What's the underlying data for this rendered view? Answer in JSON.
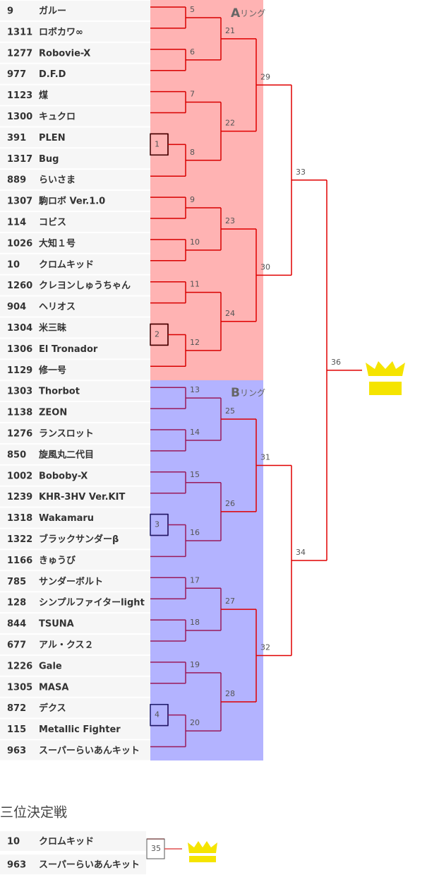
{
  "players": [
    {
      "id": "9",
      "name": "ガルー"
    },
    {
      "id": "1311",
      "name": "ロボカワ∞"
    },
    {
      "id": "1277",
      "name": "Robovie-X"
    },
    {
      "id": "977",
      "name": "D.F.D"
    },
    {
      "id": "1123",
      "name": "煤"
    },
    {
      "id": "1300",
      "name": "キュクロ"
    },
    {
      "id": "391",
      "name": "PLEN"
    },
    {
      "id": "1317",
      "name": "Bug"
    },
    {
      "id": "889",
      "name": "らいさま"
    },
    {
      "id": "1307",
      "name": "駒ロボ Ver.1.0"
    },
    {
      "id": "114",
      "name": "コビス"
    },
    {
      "id": "1026",
      "name": "大知１号"
    },
    {
      "id": "10",
      "name": "クロムキッド"
    },
    {
      "id": "1260",
      "name": "クレヨンしゅうちゃん"
    },
    {
      "id": "904",
      "name": "ヘリオス"
    },
    {
      "id": "1304",
      "name": "米三昧"
    },
    {
      "id": "1306",
      "name": "El Tronador"
    },
    {
      "id": "1129",
      "name": "修一号"
    },
    {
      "id": "1303",
      "name": "Thorbot"
    },
    {
      "id": "1138",
      "name": "ZEON"
    },
    {
      "id": "1276",
      "name": "ランスロット"
    },
    {
      "id": "850",
      "name": "旋風丸二代目"
    },
    {
      "id": "1002",
      "name": "Boboby-X"
    },
    {
      "id": "1239",
      "name": "KHR-3HV Ver.KIT"
    },
    {
      "id": "1318",
      "name": "Wakamaru"
    },
    {
      "id": "1322",
      "name": "ブラックサンダーβ"
    },
    {
      "id": "1166",
      "name": "きゅうび"
    },
    {
      "id": "785",
      "name": "サンダーボルト"
    },
    {
      "id": "128",
      "name": "シンプルファイターlight"
    },
    {
      "id": "844",
      "name": "TSUNA"
    },
    {
      "id": "677",
      "name": "アル・クス２"
    },
    {
      "id": "1226",
      "name": "Gale"
    },
    {
      "id": "1305",
      "name": "MASA"
    },
    {
      "id": "872",
      "name": "デクス"
    },
    {
      "id": "115",
      "name": "Metallic Fighter"
    },
    {
      "id": "963",
      "name": "スーパーらいあんキット"
    }
  ],
  "rings": [
    {
      "letter": "A",
      "suffix": "リング"
    },
    {
      "letter": "B",
      "suffix": "リング"
    }
  ],
  "matches": [
    "1",
    "2",
    "3",
    "4",
    "5",
    "6",
    "7",
    "8",
    "9",
    "10",
    "11",
    "12",
    "13",
    "14",
    "15",
    "16",
    "17",
    "18",
    "19",
    "20",
    "21",
    "22",
    "23",
    "24",
    "25",
    "26",
    "27",
    "28",
    "29",
    "30",
    "31",
    "32",
    "33",
    "34",
    "35",
    "36"
  ],
  "third_place": {
    "title": "三位決定戦",
    "players": [
      {
        "id": "10",
        "name": "クロムキッド"
      },
      {
        "id": "963",
        "name": "スーパーらいあんキット"
      }
    ]
  }
}
